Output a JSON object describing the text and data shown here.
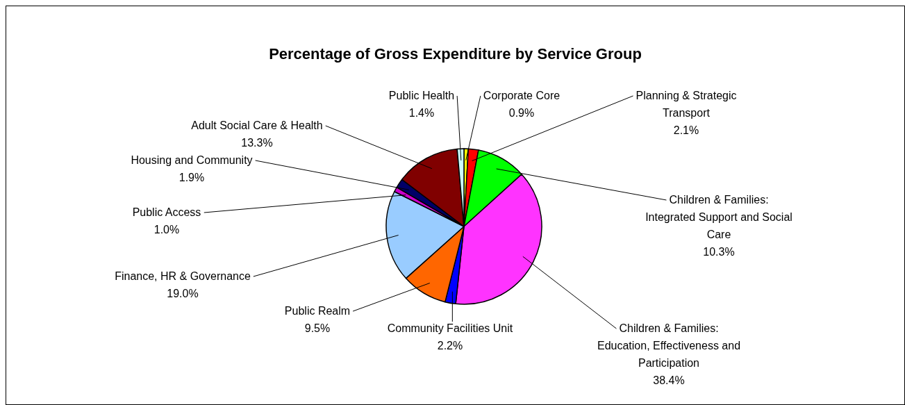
{
  "chart_data": {
    "type": "pie",
    "title": "Percentage of Gross Expenditure by Service Group",
    "categories": [
      "Corporate Core",
      "Planning & Strategic Transport",
      "Children & Families: Integrated Support and Social Care",
      "Children & Families: Education, Effectiveness and Participation",
      "Community Facilities Unit",
      "Public Realm",
      "Finance, HR & Governance",
      "Public Access",
      "Housing and Community",
      "Adult Social Care & Health",
      "Public Health"
    ],
    "values": [
      0.9,
      2.1,
      10.3,
      38.4,
      2.2,
      9.5,
      19.0,
      1.0,
      1.9,
      13.3,
      1.4
    ],
    "value_labels": [
      "0.9%",
      "2.1%",
      "10.3%",
      "38.4%",
      "2.2%",
      "9.5%",
      "19.0%",
      "1.0%",
      "1.9%",
      "13.3%",
      "1.4%"
    ],
    "colors": [
      "#ffff00",
      "#ff0000",
      "#00ff00",
      "#ff33ff",
      "#0000ff",
      "#ff6600",
      "#99ccff",
      "#cc00cc",
      "#000066",
      "#800000",
      "#ccffff"
    ]
  }
}
